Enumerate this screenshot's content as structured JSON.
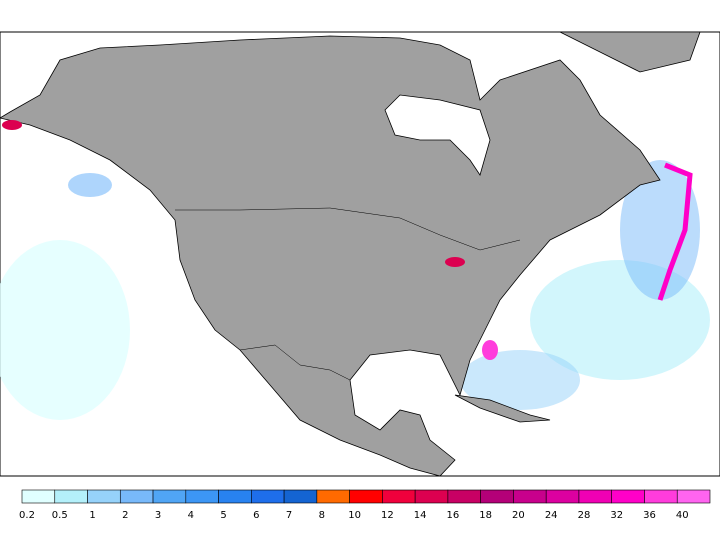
{
  "colorbar": {
    "ticks": [
      0.2,
      0.5,
      1,
      2,
      3,
      4,
      5,
      6,
      7,
      8,
      10,
      12,
      14,
      16,
      18,
      20,
      24,
      28,
      32,
      36,
      40
    ],
    "colors": [
      "#e0ffff",
      "#b4f0fa",
      "#96d2fa",
      "#78b9fa",
      "#50a5f5",
      "#3c96f5",
      "#2882f0",
      "#1e6eeb",
      "#1464d2",
      "#ff6a00",
      "#ff0000",
      "#f0003c",
      "#dc0050",
      "#c80064",
      "#b40078",
      "#c8008c",
      "#dc00a0",
      "#f000b4",
      "#ff00c8",
      "#ff3cdc",
      "#ff64f0"
    ]
  }
}
